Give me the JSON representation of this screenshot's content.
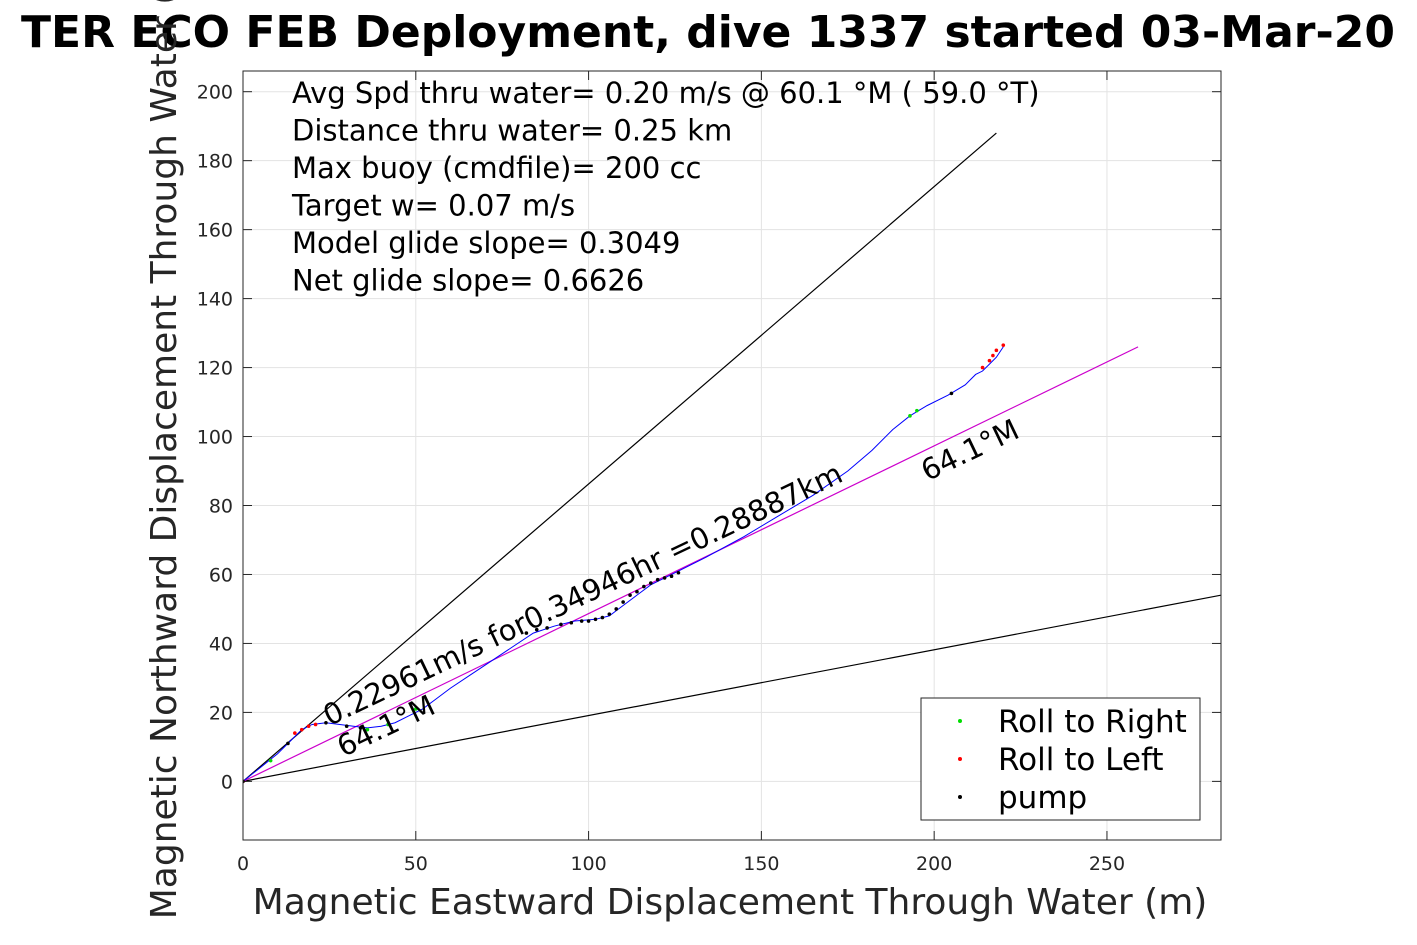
{
  "chart_data": {
    "type": "line",
    "title": "TER ECO FEB Deployment, dive 1337 started 03-Mar-20",
    "xlabel": "Magnetic Eastward Displacement Through Water (m)",
    "ylabel": "Magnetic Northward Displacement Through Water (",
    "xlim": [
      0,
      283
    ],
    "ylim": [
      -17,
      206
    ],
    "xticks": [
      0,
      50,
      100,
      150,
      200,
      250
    ],
    "yticks": [
      0,
      20,
      40,
      60,
      80,
      100,
      120,
      140,
      160,
      180,
      200
    ],
    "grid": true,
    "info_lines": [
      "Avg Spd thru water=  0.20 m/s @  60.1 °M ( 59.0 °T)",
      "Distance thru water=  0.25 km",
      "Max buoy (cmdfile)= 200 cc",
      "Target w= 0.07 m/s",
      "Model glide slope= 0.3049",
      "Net glide slope= 0.6626"
    ],
    "annotations": [
      {
        "text": "0.22961m/s for0.34946hr =0.28887km",
        "x": 25,
        "y": 16,
        "angle": 25.5
      },
      {
        "text": "64.1°M",
        "x": 29,
        "y": 7,
        "angle": 25.5
      },
      {
        "text": "64.1°M",
        "x": 198,
        "y": 87,
        "angle": 25.5
      }
    ],
    "reference_lines": [
      {
        "name": "upper-bound",
        "color": "#000000",
        "points": [
          [
            0,
            0
          ],
          [
            218,
            188
          ]
        ]
      },
      {
        "name": "lower-bound",
        "color": "#000000",
        "points": [
          [
            0,
            0
          ],
          [
            283,
            54
          ]
        ]
      },
      {
        "name": "heading",
        "color": "#cc00cc",
        "points": [
          [
            0,
            0
          ],
          [
            259,
            126
          ]
        ]
      }
    ],
    "series": [
      {
        "name": "",
        "color": "#0000ff",
        "points": [
          [
            0,
            0
          ],
          [
            5,
            4
          ],
          [
            10,
            8
          ],
          [
            14,
            12
          ],
          [
            17,
            15
          ],
          [
            20,
            16.5
          ],
          [
            24,
            17
          ],
          [
            28,
            16.5
          ],
          [
            32,
            16
          ],
          [
            36,
            15.5
          ],
          [
            40,
            16
          ],
          [
            44,
            17
          ],
          [
            48,
            19
          ],
          [
            52,
            21
          ],
          [
            56,
            24
          ],
          [
            60,
            27
          ],
          [
            66,
            31
          ],
          [
            72,
            35
          ],
          [
            78,
            39
          ],
          [
            84,
            43
          ],
          [
            90,
            45
          ],
          [
            96,
            46.5
          ],
          [
            102,
            47
          ],
          [
            106,
            48
          ],
          [
            110,
            51
          ],
          [
            114,
            54
          ],
          [
            118,
            57
          ],
          [
            122,
            59
          ],
          [
            126,
            61
          ],
          [
            134,
            65
          ],
          [
            145,
            71
          ],
          [
            155,
            77
          ],
          [
            165,
            83
          ],
          [
            175,
            90
          ],
          [
            182,
            96
          ],
          [
            188,
            102
          ],
          [
            193,
            106
          ],
          [
            198,
            109
          ],
          [
            204,
            112
          ],
          [
            209,
            115
          ],
          [
            212,
            118
          ],
          [
            214,
            119
          ],
          [
            216,
            121
          ],
          [
            218,
            123
          ],
          [
            220,
            126
          ]
        ]
      }
    ],
    "markers": [
      {
        "name": "Roll to Right",
        "color": "#00dd00",
        "points": [
          [
            8,
            6
          ],
          [
            36,
            15
          ],
          [
            42,
            16.5
          ],
          [
            50,
            21
          ],
          [
            193,
            106
          ],
          [
            195,
            107.5
          ]
        ]
      },
      {
        "name": "Roll to Left",
        "color": "#ff0000",
        "points": [
          [
            0,
            0
          ],
          [
            15,
            14
          ],
          [
            17,
            15
          ],
          [
            19,
            16
          ],
          [
            21,
            16.5
          ],
          [
            214,
            120
          ],
          [
            216,
            122
          ],
          [
            217,
            123.5
          ],
          [
            218,
            125
          ],
          [
            220,
            126.5
          ]
        ]
      },
      {
        "name": "pump",
        "color": "#000000",
        "points": [
          [
            0,
            0
          ],
          [
            13,
            11
          ],
          [
            24,
            17
          ],
          [
            30,
            16
          ],
          [
            34,
            15.5
          ],
          [
            82,
            43
          ],
          [
            85,
            44
          ],
          [
            88,
            44.5
          ],
          [
            92,
            45.5
          ],
          [
            95,
            46
          ],
          [
            98,
            46.5
          ],
          [
            100,
            46.5
          ],
          [
            102,
            47
          ],
          [
            104,
            47.5
          ],
          [
            106,
            48.5
          ],
          [
            108,
            50
          ],
          [
            110,
            52
          ],
          [
            112,
            54
          ],
          [
            114,
            55
          ],
          [
            116,
            56.5
          ],
          [
            118,
            57.5
          ],
          [
            120,
            58.5
          ],
          [
            122,
            59
          ],
          [
            124,
            59.5
          ],
          [
            126,
            60.5
          ],
          [
            205,
            112.5
          ]
        ]
      }
    ],
    "legend": {
      "placement": "bottom-right",
      "entries": [
        {
          "label": "Roll to Right",
          "color": "#00dd00"
        },
        {
          "label": "Roll to Left",
          "color": "#ff0000"
        },
        {
          "label": "pump",
          "color": "#000000"
        }
      ]
    }
  }
}
